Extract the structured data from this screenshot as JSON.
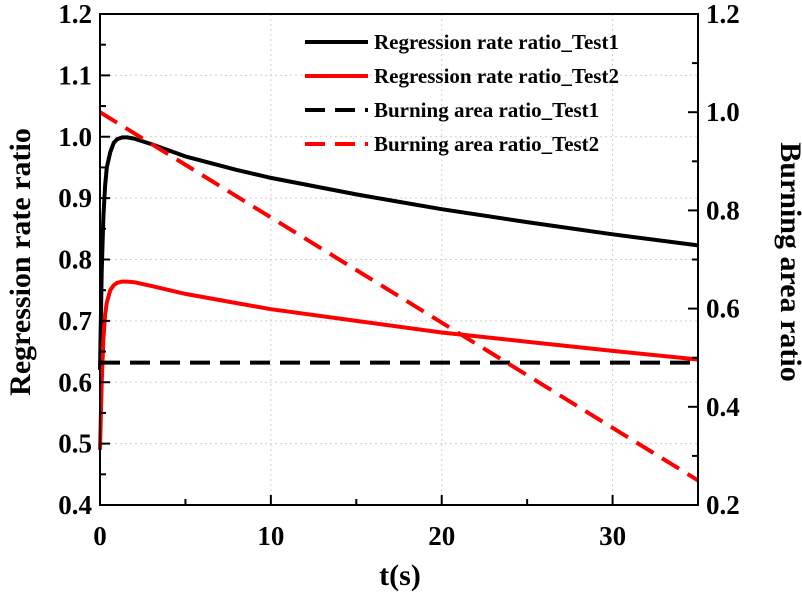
{
  "chart_data": {
    "type": "line",
    "xlabel": "t(s)",
    "ylabel_left": "Regression rate ratio",
    "ylabel_right": "Burning area ratio",
    "xlim": [
      0,
      35
    ],
    "ylim_left": [
      0.4,
      1.2
    ],
    "ylim_right": [
      0.2,
      1.2
    ],
    "x_ticks": [
      "0",
      "10",
      "20",
      "30"
    ],
    "x_tick_values": [
      0,
      10,
      20,
      30
    ],
    "y_left_ticks": [
      "0.4",
      "0.5",
      "0.6",
      "0.7",
      "0.8",
      "0.9",
      "1.0",
      "1.1",
      "1.2"
    ],
    "y_left_tick_values": [
      0.4,
      0.5,
      0.6,
      0.7,
      0.8,
      0.9,
      1.0,
      1.1,
      1.2
    ],
    "y_right_ticks": [
      "0.2",
      "0.4",
      "0.6",
      "0.8",
      "1.0",
      "1.2"
    ],
    "y_right_tick_values": [
      0.2,
      0.4,
      0.6,
      0.8,
      1.0,
      1.2
    ],
    "grid": true,
    "legend_position": "top-right",
    "series": [
      {
        "name": "Regression rate ratio_Test1",
        "axis": "left",
        "style": "solid",
        "color": "#000000",
        "x": [
          0,
          0.1,
          0.2,
          0.3,
          0.4,
          0.6,
          0.8,
          1.0,
          1.3,
          1.6,
          2,
          3,
          5,
          8,
          10,
          15,
          20,
          25,
          30,
          35
        ],
        "y": [
          0.62,
          0.78,
          0.87,
          0.92,
          0.95,
          0.975,
          0.99,
          0.996,
          0.999,
          0.999,
          0.997,
          0.988,
          0.968,
          0.946,
          0.933,
          0.906,
          0.882,
          0.861,
          0.841,
          0.823
        ]
      },
      {
        "name": "Regression rate ratio_Test2",
        "axis": "left",
        "style": "solid",
        "color": "#ff0000",
        "x": [
          0,
          0.1,
          0.2,
          0.3,
          0.4,
          0.6,
          0.8,
          1.0,
          1.3,
          1.6,
          2,
          3,
          5,
          8,
          10,
          15,
          20,
          25,
          30,
          35
        ],
        "y": [
          0.49,
          0.6,
          0.67,
          0.71,
          0.73,
          0.75,
          0.758,
          0.762,
          0.764,
          0.764,
          0.763,
          0.757,
          0.744,
          0.729,
          0.719,
          0.7,
          0.681,
          0.666,
          0.651,
          0.637
        ]
      },
      {
        "name": "Burning area ratio_Test1",
        "axis": "right",
        "style": "dashed",
        "color": "#000000",
        "x": [
          0,
          35
        ],
        "y": [
          0.49,
          0.49
        ]
      },
      {
        "name": "Burning area ratio_Test2",
        "axis": "right",
        "style": "dashed",
        "color": "#ff0000",
        "x": [
          0,
          35
        ],
        "y": [
          1.0,
          0.25
        ]
      }
    ]
  }
}
